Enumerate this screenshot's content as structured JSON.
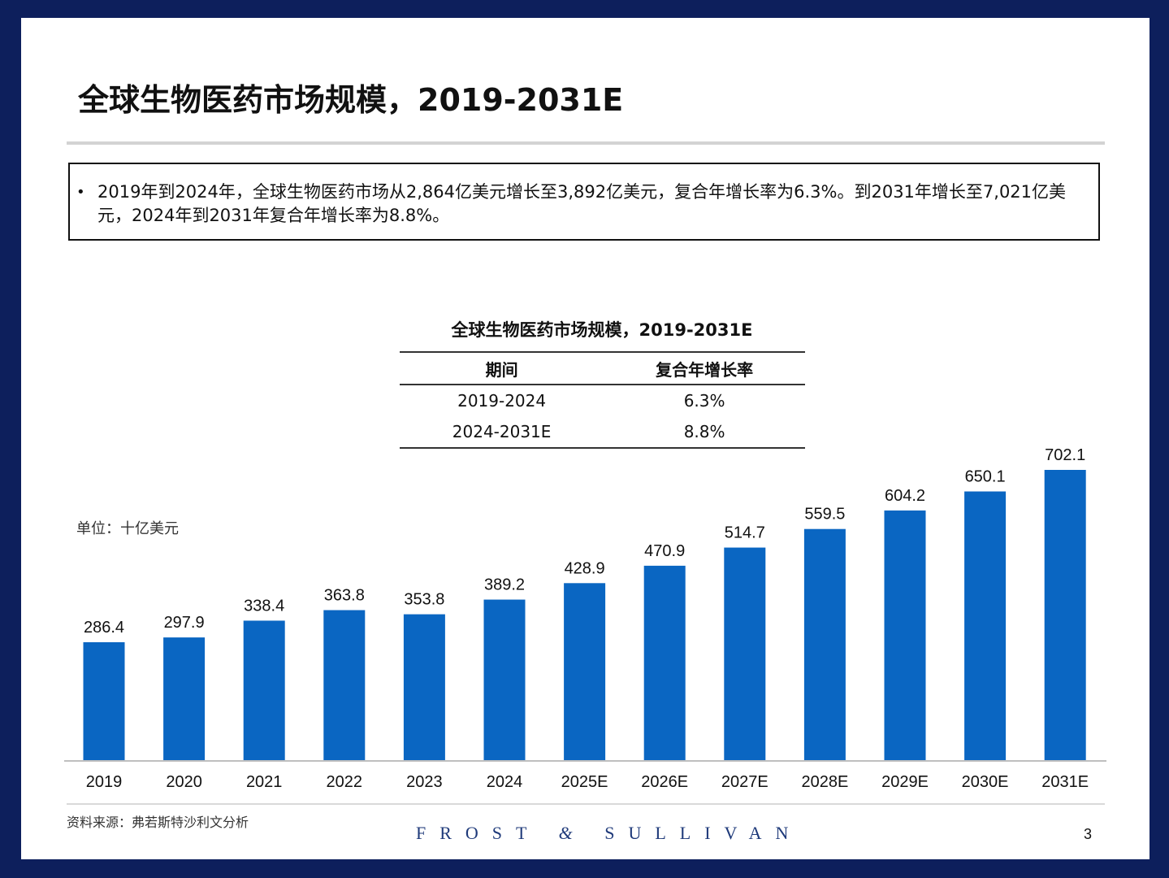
{
  "slide": {
    "title": "全球生物医药市场规模，2019-2031E",
    "summary_bullet": "•",
    "summary": "2019年到2024年，全球生物医药市场从2,864亿美元增长至3,892亿美元，复合年增长率为6.3%。到2031年增长至7,021亿美元，2024年到2031年复合年增长率为8.8%。",
    "chart_title": "全球生物医药市场规模，2019-2031E",
    "unit": "单位：十亿美元",
    "source": "资料来源：弗若斯特沙利文分析",
    "brand_left": "FROST",
    "brand_amp": "&",
    "brand_right": "SULLIVAN",
    "page_number": "3"
  },
  "cagr_table": {
    "headers": [
      "期间",
      "复合年增长率"
    ],
    "rows": [
      [
        "2019-2024",
        "6.3%"
      ],
      [
        "2024-2031E",
        "8.8%"
      ]
    ]
  },
  "colors": {
    "bar": "#0a66c2",
    "axis": "#bfbfbf"
  },
  "chart_data": {
    "type": "bar",
    "title": "全球生物医药市场规模，2019-2031E",
    "xlabel": "",
    "ylabel": "单位：十亿美元",
    "categories": [
      "2019",
      "2020",
      "2021",
      "2022",
      "2023",
      "2024",
      "2025E",
      "2026E",
      "2027E",
      "2028E",
      "2029E",
      "2030E",
      "2031E"
    ],
    "values": [
      286.4,
      297.9,
      338.4,
      363.8,
      353.8,
      389.2,
      428.9,
      470.9,
      514.7,
      559.5,
      604.2,
      650.1,
      702.1
    ],
    "value_labels": [
      "286.4",
      "297.9",
      "338.4",
      "363.8",
      "353.8",
      "389.2",
      "428.9",
      "470.9",
      "514.7",
      "559.5",
      "604.2",
      "650.1",
      "702.1"
    ],
    "ylim": [
      0,
      702.1
    ],
    "grid": false,
    "legend": "none"
  }
}
